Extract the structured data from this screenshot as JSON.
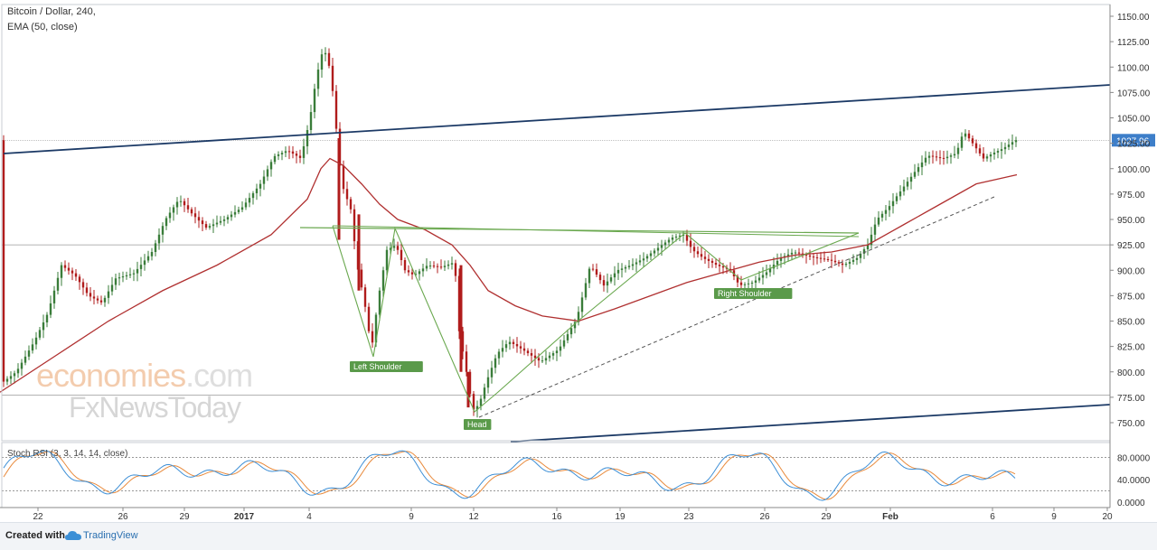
{
  "header": {
    "title": "Bitcoin / Dollar, 240,",
    "indicator": "EMA (50, close)"
  },
  "rsi_panel": {
    "label": "Stoch RSI (3, 3, 14, 14, close)"
  },
  "price_badge": "1027.96",
  "annotations": {
    "left_shoulder": "Left Shoulder",
    "head": "Head",
    "right_shoulder": "Right Shoulder"
  },
  "watermark": {
    "line1_a": "economies",
    "line1_b": ".com",
    "line2": "FxNewsToday"
  },
  "footer": {
    "created": "Created with",
    "brand": "TradingView"
  },
  "colors": {
    "up": "#3a7d3a",
    "down": "#b01c1c",
    "ema": "#b03030",
    "trend": "#1c3a66",
    "pattern": "#6aa84f",
    "rsi_k": "#3d8fd6",
    "rsi_d": "#e88a3c",
    "badge": "#3d7ec9"
  },
  "chart_data": {
    "type": "candlestick",
    "price_axis": {
      "ticks": [
        750,
        775,
        800,
        825,
        850,
        875,
        900,
        925,
        950,
        975,
        1000,
        1025,
        1050,
        1075,
        1100,
        1125,
        1150
      ],
      "range": [
        737,
        1155
      ]
    },
    "time_axis": {
      "ticks": [
        "22",
        "26",
        "29",
        "2017",
        "4",
        "9",
        "12",
        "16",
        "19",
        "23",
        "26",
        "29",
        "Feb",
        "6",
        "9",
        "20"
      ]
    },
    "horizontal_levels": [
      1027.96,
      925,
      777
    ],
    "ema_close": [
      [
        0,
        780
      ],
      [
        60,
        815
      ],
      [
        120,
        850
      ],
      [
        180,
        880
      ],
      [
        240,
        905
      ],
      [
        300,
        935
      ],
      [
        340,
        970
      ],
      [
        355,
        1000
      ],
      [
        365,
        1010
      ],
      [
        380,
        1003
      ],
      [
        400,
        985
      ],
      [
        420,
        965
      ],
      [
        440,
        950
      ],
      [
        470,
        940
      ],
      [
        500,
        925
      ],
      [
        520,
        905
      ],
      [
        540,
        880
      ],
      [
        570,
        865
      ],
      [
        600,
        855
      ],
      [
        640,
        850
      ],
      [
        680,
        862
      ],
      [
        720,
        875
      ],
      [
        760,
        888
      ],
      [
        800,
        898
      ],
      [
        840,
        908
      ],
      [
        880,
        915
      ],
      [
        920,
        918
      ],
      [
        960,
        925
      ],
      [
        1000,
        945
      ],
      [
        1040,
        965
      ],
      [
        1080,
        985
      ],
      [
        1125,
        994
      ]
    ],
    "rsi_axis": {
      "ticks": [
        "80.0000",
        "40.0000",
        "0.0000"
      ]
    },
    "rsi_levels": [
      80,
      20
    ]
  }
}
